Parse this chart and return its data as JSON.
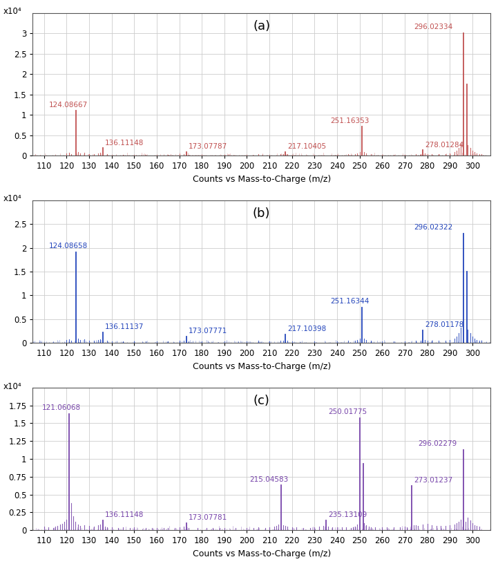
{
  "panels": [
    {
      "label": "(a)",
      "color": "#c05050",
      "ylim": [
        0,
        3.5
      ],
      "yticks": [
        0,
        0.5,
        1.0,
        1.5,
        2.0,
        2.5,
        3.0
      ],
      "peaks": [
        {
          "mz": 124.08667,
          "intensity": 1.1,
          "label": "124.08667",
          "lox": -12,
          "loy": 0.06
        },
        {
          "mz": 136.11148,
          "intensity": 0.18,
          "label": "136.11148",
          "lox": 1,
          "loy": 0.04
        },
        {
          "mz": 173.07787,
          "intensity": 0.09,
          "label": "173.07787",
          "lox": 1,
          "loy": 0.04
        },
        {
          "mz": 217.10405,
          "intensity": 0.09,
          "label": "217.10405",
          "lox": 1,
          "loy": 0.04
        },
        {
          "mz": 251.16353,
          "intensity": 0.72,
          "label": "251.16353",
          "lox": -14,
          "loy": 0.05
        },
        {
          "mz": 278.01284,
          "intensity": 0.13,
          "label": "278.01284",
          "lox": 1,
          "loy": 0.04
        },
        {
          "mz": 296.02334,
          "intensity": 3.0,
          "label": "296.02334",
          "lox": -22,
          "loy": 0.06
        },
        {
          "mz": 297.6,
          "intensity": 1.75,
          "label": "",
          "lox": 0,
          "loy": 0
        }
      ],
      "extra_peaks": [
        [
          120,
          0.05
        ],
        [
          121,
          0.07
        ],
        [
          122,
          0.04
        ],
        [
          125,
          0.08
        ],
        [
          126,
          0.05
        ],
        [
          128,
          0.06
        ],
        [
          130,
          0.04
        ],
        [
          132,
          0.03
        ],
        [
          134,
          0.05
        ],
        [
          135,
          0.06
        ],
        [
          138,
          0.03
        ],
        [
          140,
          0.02
        ],
        [
          145,
          0.02
        ],
        [
          150,
          0.02
        ],
        [
          155,
          0.02
        ],
        [
          160,
          0.02
        ],
        [
          165,
          0.02
        ],
        [
          170,
          0.03
        ],
        [
          172,
          0.04
        ],
        [
          174,
          0.02
        ],
        [
          180,
          0.02
        ],
        [
          190,
          0.02
        ],
        [
          200,
          0.02
        ],
        [
          205,
          0.03
        ],
        [
          210,
          0.02
        ],
        [
          215,
          0.03
        ],
        [
          216,
          0.04
        ],
        [
          218,
          0.03
        ],
        [
          220,
          0.02
        ],
        [
          230,
          0.02
        ],
        [
          240,
          0.02
        ],
        [
          245,
          0.03
        ],
        [
          248,
          0.04
        ],
        [
          249,
          0.05
        ],
        [
          250,
          0.08
        ],
        [
          252,
          0.08
        ],
        [
          253,
          0.05
        ],
        [
          255,
          0.03
        ],
        [
          260,
          0.02
        ],
        [
          265,
          0.02
        ],
        [
          270,
          0.02
        ],
        [
          275,
          0.03
        ],
        [
          277,
          0.04
        ],
        [
          279,
          0.05
        ],
        [
          280,
          0.04
        ],
        [
          282,
          0.03
        ],
        [
          285,
          0.03
        ],
        [
          288,
          0.04
        ],
        [
          290,
          0.05
        ],
        [
          292,
          0.08
        ],
        [
          293,
          0.12
        ],
        [
          294,
          0.18
        ],
        [
          295,
          0.28
        ],
        [
          298,
          0.25
        ],
        [
          299,
          0.18
        ],
        [
          300,
          0.12
        ],
        [
          301,
          0.08
        ],
        [
          302,
          0.05
        ],
        [
          303,
          0.04
        ],
        [
          304,
          0.03
        ]
      ]
    },
    {
      "label": "(b)",
      "color": "#2244bb",
      "ylim": [
        0,
        3.0
      ],
      "yticks": [
        0,
        0.5,
        1.0,
        1.5,
        2.0,
        2.5
      ],
      "peaks": [
        {
          "mz": 124.08658,
          "intensity": 1.9,
          "label": "124.08658",
          "lox": -12,
          "loy": 0.06
        },
        {
          "mz": 136.11137,
          "intensity": 0.22,
          "label": "136.11137",
          "lox": 1,
          "loy": 0.04
        },
        {
          "mz": 173.07771,
          "intensity": 0.14,
          "label": "173.07771",
          "lox": 1,
          "loy": 0.04
        },
        {
          "mz": 217.10398,
          "intensity": 0.18,
          "label": "217.10398",
          "lox": 1,
          "loy": 0.04
        },
        {
          "mz": 251.16344,
          "intensity": 0.75,
          "label": "251.16344",
          "lox": -14,
          "loy": 0.05
        },
        {
          "mz": 278.01178,
          "intensity": 0.27,
          "label": "278.01178",
          "lox": 1,
          "loy": 0.04
        },
        {
          "mz": 296.02322,
          "intensity": 2.3,
          "label": "296.02322",
          "lox": -22,
          "loy": 0.06
        },
        {
          "mz": 297.6,
          "intensity": 1.5,
          "label": "",
          "lox": 0,
          "loy": 0
        }
      ],
      "extra_peaks": [
        [
          120,
          0.06
        ],
        [
          121,
          0.08
        ],
        [
          122,
          0.05
        ],
        [
          125,
          0.09
        ],
        [
          126,
          0.06
        ],
        [
          128,
          0.07
        ],
        [
          130,
          0.05
        ],
        [
          132,
          0.04
        ],
        [
          134,
          0.06
        ],
        [
          135,
          0.07
        ],
        [
          138,
          0.04
        ],
        [
          140,
          0.03
        ],
        [
          145,
          0.03
        ],
        [
          150,
          0.03
        ],
        [
          155,
          0.03
        ],
        [
          160,
          0.03
        ],
        [
          165,
          0.03
        ],
        [
          170,
          0.04
        ],
        [
          172,
          0.05
        ],
        [
          174,
          0.03
        ],
        [
          180,
          0.03
        ],
        [
          190,
          0.03
        ],
        [
          200,
          0.03
        ],
        [
          205,
          0.04
        ],
        [
          210,
          0.03
        ],
        [
          215,
          0.04
        ],
        [
          216,
          0.05
        ],
        [
          218,
          0.04
        ],
        [
          220,
          0.03
        ],
        [
          230,
          0.03
        ],
        [
          240,
          0.03
        ],
        [
          245,
          0.04
        ],
        [
          248,
          0.05
        ],
        [
          249,
          0.06
        ],
        [
          250,
          0.09
        ],
        [
          252,
          0.09
        ],
        [
          253,
          0.06
        ],
        [
          255,
          0.04
        ],
        [
          260,
          0.03
        ],
        [
          265,
          0.03
        ],
        [
          270,
          0.03
        ],
        [
          275,
          0.04
        ],
        [
          277,
          0.05
        ],
        [
          279,
          0.06
        ],
        [
          280,
          0.05
        ],
        [
          282,
          0.04
        ],
        [
          285,
          0.04
        ],
        [
          288,
          0.05
        ],
        [
          290,
          0.06
        ],
        [
          292,
          0.09
        ],
        [
          293,
          0.14
        ],
        [
          294,
          0.2
        ],
        [
          295,
          0.32
        ],
        [
          298,
          0.28
        ],
        [
          299,
          0.2
        ],
        [
          300,
          0.14
        ],
        [
          301,
          0.09
        ],
        [
          302,
          0.06
        ],
        [
          303,
          0.05
        ],
        [
          304,
          0.04
        ]
      ]
    },
    {
      "label": "(c)",
      "color": "#7744aa",
      "ylim": [
        0,
        2.0
      ],
      "yticks": [
        0,
        0.25,
        0.5,
        0.75,
        1.0,
        1.25,
        1.5,
        1.75
      ],
      "peaks": [
        {
          "mz": 121.06068,
          "intensity": 1.63,
          "label": "121.06068",
          "lox": -12,
          "loy": 0.04
        },
        {
          "mz": 136.11148,
          "intensity": 0.14,
          "label": "136.11148",
          "lox": 1,
          "loy": 0.03
        },
        {
          "mz": 173.07781,
          "intensity": 0.1,
          "label": "173.07781",
          "lox": 1,
          "loy": 0.03
        },
        {
          "mz": 215.04583,
          "intensity": 0.63,
          "label": "215.04583",
          "lox": -14,
          "loy": 0.03
        },
        {
          "mz": 235.13109,
          "intensity": 0.14,
          "label": "235.13109",
          "lox": 1,
          "loy": 0.03
        },
        {
          "mz": 250.01775,
          "intensity": 1.57,
          "label": "250.01775",
          "lox": -14,
          "loy": 0.04
        },
        {
          "mz": 251.5,
          "intensity": 0.93,
          "label": "",
          "lox": 0,
          "loy": 0
        },
        {
          "mz": 273.01237,
          "intensity": 0.62,
          "label": "273.01237",
          "lox": 1,
          "loy": 0.03
        },
        {
          "mz": 296.02279,
          "intensity": 1.13,
          "label": "296.02279",
          "lox": -20,
          "loy": 0.04
        }
      ],
      "extra_peaks": [
        [
          110,
          0.05
        ],
        [
          112,
          0.04
        ],
        [
          114,
          0.03
        ],
        [
          115,
          0.05
        ],
        [
          116,
          0.06
        ],
        [
          117,
          0.08
        ],
        [
          118,
          0.09
        ],
        [
          119,
          0.12
        ],
        [
          120,
          0.15
        ],
        [
          122,
          0.38
        ],
        [
          123,
          0.2
        ],
        [
          124,
          0.12
        ],
        [
          125,
          0.08
        ],
        [
          126,
          0.06
        ],
        [
          128,
          0.07
        ],
        [
          130,
          0.06
        ],
        [
          132,
          0.05
        ],
        [
          134,
          0.07
        ],
        [
          135,
          0.08
        ],
        [
          137,
          0.05
        ],
        [
          138,
          0.04
        ],
        [
          140,
          0.04
        ],
        [
          143,
          0.03
        ],
        [
          145,
          0.04
        ],
        [
          148,
          0.03
        ],
        [
          150,
          0.04
        ],
        [
          155,
          0.03
        ],
        [
          158,
          0.03
        ],
        [
          160,
          0.03
        ],
        [
          163,
          0.03
        ],
        [
          165,
          0.03
        ],
        [
          168,
          0.03
        ],
        [
          170,
          0.04
        ],
        [
          172,
          0.05
        ],
        [
          174,
          0.03
        ],
        [
          178,
          0.03
        ],
        [
          182,
          0.03
        ],
        [
          185,
          0.03
        ],
        [
          188,
          0.03
        ],
        [
          190,
          0.03
        ],
        [
          195,
          0.03
        ],
        [
          200,
          0.03
        ],
        [
          203,
          0.03
        ],
        [
          205,
          0.04
        ],
        [
          208,
          0.03
        ],
        [
          210,
          0.04
        ],
        [
          212,
          0.05
        ],
        [
          213,
          0.06
        ],
        [
          214,
          0.08
        ],
        [
          216,
          0.07
        ],
        [
          217,
          0.06
        ],
        [
          218,
          0.05
        ],
        [
          220,
          0.04
        ],
        [
          222,
          0.04
        ],
        [
          225,
          0.03
        ],
        [
          228,
          0.03
        ],
        [
          230,
          0.04
        ],
        [
          232,
          0.05
        ],
        [
          234,
          0.06
        ],
        [
          236,
          0.05
        ],
        [
          238,
          0.04
        ],
        [
          240,
          0.04
        ],
        [
          242,
          0.04
        ],
        [
          244,
          0.04
        ],
        [
          246,
          0.03
        ],
        [
          247,
          0.04
        ],
        [
          248,
          0.05
        ],
        [
          249,
          0.08
        ],
        [
          252,
          0.1
        ],
        [
          253,
          0.07
        ],
        [
          254,
          0.05
        ],
        [
          255,
          0.04
        ],
        [
          257,
          0.04
        ],
        [
          260,
          0.04
        ],
        [
          262,
          0.04
        ],
        [
          265,
          0.04
        ],
        [
          268,
          0.04
        ],
        [
          270,
          0.05
        ],
        [
          271,
          0.04
        ],
        [
          274,
          0.07
        ],
        [
          275,
          0.07
        ],
        [
          276,
          0.06
        ],
        [
          278,
          0.08
        ],
        [
          280,
          0.09
        ],
        [
          282,
          0.07
        ],
        [
          284,
          0.06
        ],
        [
          286,
          0.06
        ],
        [
          288,
          0.06
        ],
        [
          290,
          0.07
        ],
        [
          292,
          0.08
        ],
        [
          293,
          0.1
        ],
        [
          294,
          0.12
        ],
        [
          295,
          0.15
        ],
        [
          297,
          0.12
        ],
        [
          298,
          0.18
        ],
        [
          299,
          0.14
        ],
        [
          300,
          0.1
        ],
        [
          301,
          0.07
        ],
        [
          302,
          0.06
        ],
        [
          303,
          0.05
        ]
      ]
    }
  ],
  "xlim": [
    105,
    308
  ],
  "xticks": [
    110,
    120,
    130,
    140,
    150,
    160,
    170,
    180,
    190,
    200,
    210,
    220,
    230,
    240,
    250,
    260,
    270,
    280,
    290,
    300
  ],
  "xlabel": "Counts vs Mass-to-Charge (m/z)",
  "ylabel_scale": "x10⁴",
  "background_color": "#ffffff",
  "grid_color": "#cccccc",
  "fig_background": "#ffffff"
}
